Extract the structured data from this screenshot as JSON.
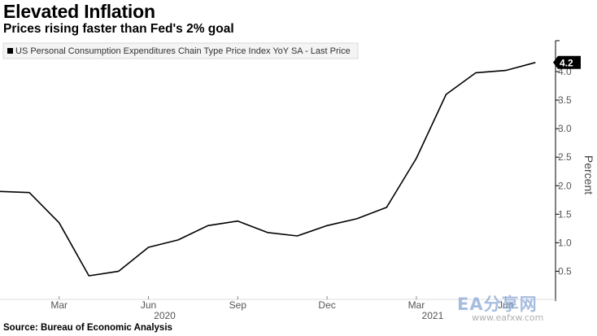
{
  "header": {
    "title": "Elevated Inflation",
    "subtitle": "Prices rising faster than Fed's 2% goal"
  },
  "footer": {
    "source": "Source: Bureau of Economic Analysis"
  },
  "watermark": {
    "logo_text": "EA分享网",
    "url_text": "www.eafxw.com"
  },
  "colors": {
    "line": "#000000",
    "axis": "#000000",
    "last_label_bg": "#000000",
    "last_label_text": "#ffffff",
    "tick_text": "#555555"
  },
  "chart_data": {
    "type": "line",
    "title": "Elevated Inflation",
    "subtitle": "Prices rising faster than Fed's 2% goal",
    "ylabel": "Percent",
    "ylim": [
      0,
      4.5
    ],
    "y_ticks": [
      0.5,
      1.0,
      1.5,
      2.0,
      2.5,
      3.0,
      3.5,
      4.0
    ],
    "y_tick_labels": [
      "0.5",
      "1.0",
      "1.5",
      "2.0",
      "2.5",
      "3.0",
      "3.5",
      "4.0"
    ],
    "x_range": [
      "2019-12",
      "2021-07"
    ],
    "x_ticks": [
      {
        "x": "2020-03",
        "label": "Mar"
      },
      {
        "x": "2020-06",
        "label": "Jun"
      },
      {
        "x": "2020-09",
        "label": "Sep"
      },
      {
        "x": "2020-12",
        "label": "Dec"
      },
      {
        "x": "2021-03",
        "label": "Mar"
      },
      {
        "x": "2021-06",
        "label": "Jun"
      }
    ],
    "year_labels": [
      {
        "x": "2020-06",
        "label": "2020"
      },
      {
        "x": "2021-03",
        "label": "2021"
      }
    ],
    "legend_position": "top-left",
    "grid": false,
    "last_value_label": "4.2",
    "series": [
      {
        "name": "US Personal Consumption Expenditures Chain Type Price Index YoY SA - Last Price",
        "x": [
          "2020-01",
          "2020-02",
          "2020-03",
          "2020-04",
          "2020-05",
          "2020-06",
          "2020-07",
          "2020-08",
          "2020-09",
          "2020-10",
          "2020-11",
          "2020-12",
          "2021-01",
          "2021-02",
          "2021-03",
          "2021-04",
          "2021-05",
          "2021-06",
          "2021-07"
        ],
        "values": [
          1.9,
          1.88,
          1.35,
          0.42,
          0.5,
          0.92,
          1.05,
          1.3,
          1.38,
          1.18,
          1.12,
          1.3,
          1.42,
          1.62,
          2.48,
          3.6,
          3.98,
          4.02,
          4.16
        ]
      }
    ]
  }
}
